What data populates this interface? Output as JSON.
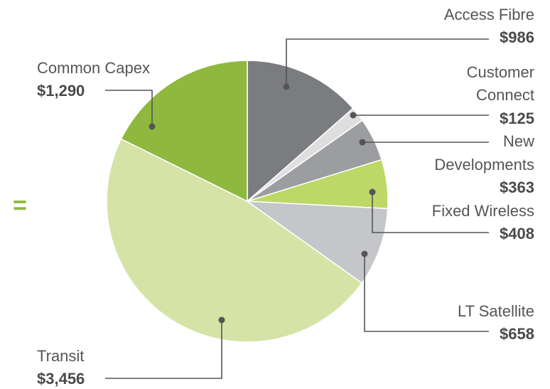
{
  "chart_data": {
    "type": "pie",
    "annotation": "=",
    "categories": [
      "Access Fibre",
      "Customer Connect",
      "New Developments",
      "Fixed Wireless",
      "LT Satellite",
      "Transit",
      "Common Capex"
    ],
    "values": [
      986,
      125,
      363,
      408,
      658,
      3456,
      1290
    ],
    "value_labels": [
      "$986",
      "$125",
      "$363",
      "$408",
      "$658",
      "$3,456",
      "$1,290"
    ],
    "colors": [
      "#7b7c7f",
      "#dedede",
      "#9c9da0",
      "#bcd866",
      "#c5c6c9",
      "#d5e3a6",
      "#8fb83e"
    ]
  }
}
